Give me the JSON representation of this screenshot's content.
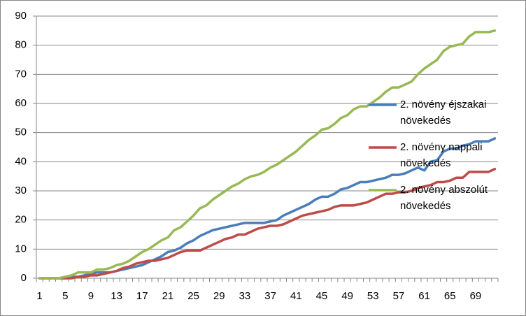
{
  "chart_data": {
    "type": "line",
    "categories": [
      "1",
      null,
      null,
      null,
      "5",
      null,
      null,
      null,
      "9",
      null,
      null,
      null,
      "13",
      null,
      null,
      null,
      "17",
      null,
      null,
      null,
      "21",
      null,
      null,
      null,
      "25",
      null,
      null,
      null,
      "29",
      null,
      null,
      null,
      "33",
      null,
      null,
      null,
      "37",
      null,
      null,
      null,
      "41",
      null,
      null,
      null,
      "45",
      null,
      null,
      null,
      "49",
      null,
      null,
      null,
      "53",
      null,
      null,
      null,
      "57",
      null,
      null,
      null,
      "61",
      null,
      null,
      null,
      "65",
      null,
      null,
      null,
      "69",
      null,
      null,
      null
    ],
    "series": [
      {
        "name": "2. növény éjszakai növekedés",
        "color": "#4a7ebb",
        "values": [
          0,
          0,
          0,
          0,
          0,
          0.5,
          0.5,
          1,
          1.5,
          2,
          2,
          2,
          2.5,
          3,
          3.5,
          4,
          4.5,
          5.5,
          6.5,
          7.5,
          9,
          9.5,
          10.5,
          12,
          13,
          14.5,
          15.5,
          16.5,
          17,
          17.5,
          18,
          18.5,
          19,
          19,
          19,
          19,
          19.5,
          20,
          21.5,
          22.5,
          23.5,
          24.5,
          25.5,
          27,
          28,
          28,
          29,
          30.5,
          31,
          32,
          33,
          33,
          33.5,
          34,
          34.5,
          35.5,
          35.5,
          36,
          37,
          38,
          37,
          40,
          40.5,
          43.5,
          44.5,
          44.5,
          45.5,
          46,
          47,
          47,
          47,
          48
        ]
      },
      {
        "name": "2. növény nappali növekedés",
        "color": "#be4b48",
        "values": [
          0,
          0,
          0,
          0,
          0,
          0,
          0.5,
          0.5,
          1,
          1,
          1.5,
          2,
          2.5,
          3.5,
          4,
          5,
          5.5,
          6,
          6,
          6.5,
          7,
          8,
          9,
          9.5,
          9.5,
          9.5,
          10.5,
          11.5,
          12.5,
          13.5,
          14,
          15,
          15,
          16,
          17,
          17.5,
          18,
          18,
          18.5,
          19.5,
          20.5,
          21.5,
          22,
          22.5,
          23,
          23.5,
          24.5,
          25,
          25,
          25,
          25.5,
          26,
          27,
          28,
          29,
          29,
          29.5,
          29.5,
          30,
          31,
          31.5,
          32,
          33,
          33,
          33.5,
          34.5,
          34.5,
          36.5,
          36.5,
          36.5,
          36.5,
          37.5
        ]
      },
      {
        "name": "2. növény abszolút növekedés",
        "color": "#98b954",
        "values": [
          0,
          0,
          0,
          0,
          0.5,
          1,
          2,
          2,
          2,
          3,
          3,
          3.5,
          4.5,
          5,
          6,
          7.5,
          9,
          10,
          11.5,
          13,
          14,
          16.5,
          17.5,
          19.5,
          21.5,
          24,
          25,
          27,
          28.5,
          30,
          31.5,
          32.5,
          34,
          35,
          35.5,
          36.5,
          38,
          39,
          40.5,
          42,
          43.5,
          45.5,
          47.5,
          49,
          51,
          51.5,
          53,
          55,
          56,
          58,
          59,
          59,
          60.5,
          62,
          64,
          65.5,
          65.5,
          66.5,
          67.5,
          70,
          72,
          73.5,
          75,
          78,
          79.5,
          80,
          80.5,
          83,
          84.5,
          84.5,
          84.5,
          85
        ]
      }
    ],
    "ylim": [
      0,
      90
    ],
    "yticks": [
      0,
      10,
      20,
      30,
      40,
      50,
      60,
      70,
      80,
      90
    ],
    "grid": true,
    "legend": "right"
  }
}
